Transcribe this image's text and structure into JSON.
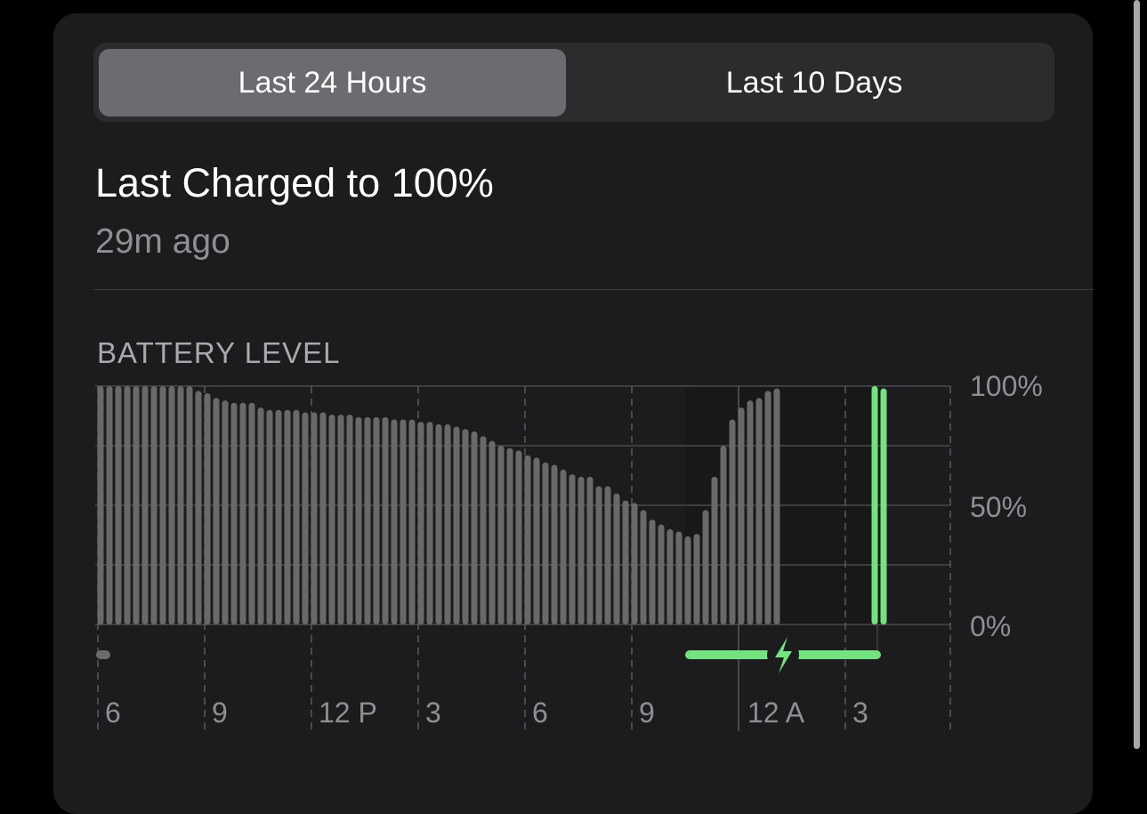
{
  "segmented": {
    "options": [
      "Last 24 Hours",
      "Last 10 Days"
    ],
    "selected": "Last 24 Hours"
  },
  "summary": {
    "title": "Last Charged to 100%",
    "subtitle": "29m ago"
  },
  "section_title": "BATTERY LEVEL",
  "colors": {
    "bar": "#69696c",
    "charged": "#74e27f",
    "charging": "#74e27f",
    "card": "#1c1c1e"
  },
  "chart_data": {
    "type": "bar",
    "interval_minutes": 15,
    "x_tick_labels": [
      "6",
      "9",
      "12 P",
      "3",
      "6",
      "9",
      "12 A",
      "3"
    ],
    "y_tick_labels": [
      "100%",
      "50%",
      "0%"
    ],
    "ylim": [
      0,
      100
    ],
    "grid": true,
    "series": [
      {
        "values": [
          100,
          100,
          100,
          100,
          100,
          100,
          100,
          100,
          100,
          100,
          100,
          98,
          97,
          95,
          94,
          93,
          93,
          93,
          91,
          90,
          90,
          90,
          90,
          89,
          89,
          89,
          88,
          88,
          88,
          87,
          87,
          87,
          87,
          86,
          86,
          86,
          85,
          85,
          84,
          84,
          83,
          82,
          81,
          79,
          77,
          75,
          74,
          73,
          71,
          70,
          68,
          67,
          65,
          63,
          62,
          62,
          58,
          58,
          55,
          52,
          51,
          48,
          44,
          42,
          40,
          39,
          37,
          38,
          48,
          62,
          75,
          86,
          91,
          94,
          95,
          98,
          99
        ]
      },
      {
        "values": [
          100,
          99
        ],
        "after_gap_slots": 11
      }
    ],
    "charging_indicator": {
      "from_slot": 66,
      "to_slot": 88,
      "icon": "bolt-icon"
    }
  }
}
